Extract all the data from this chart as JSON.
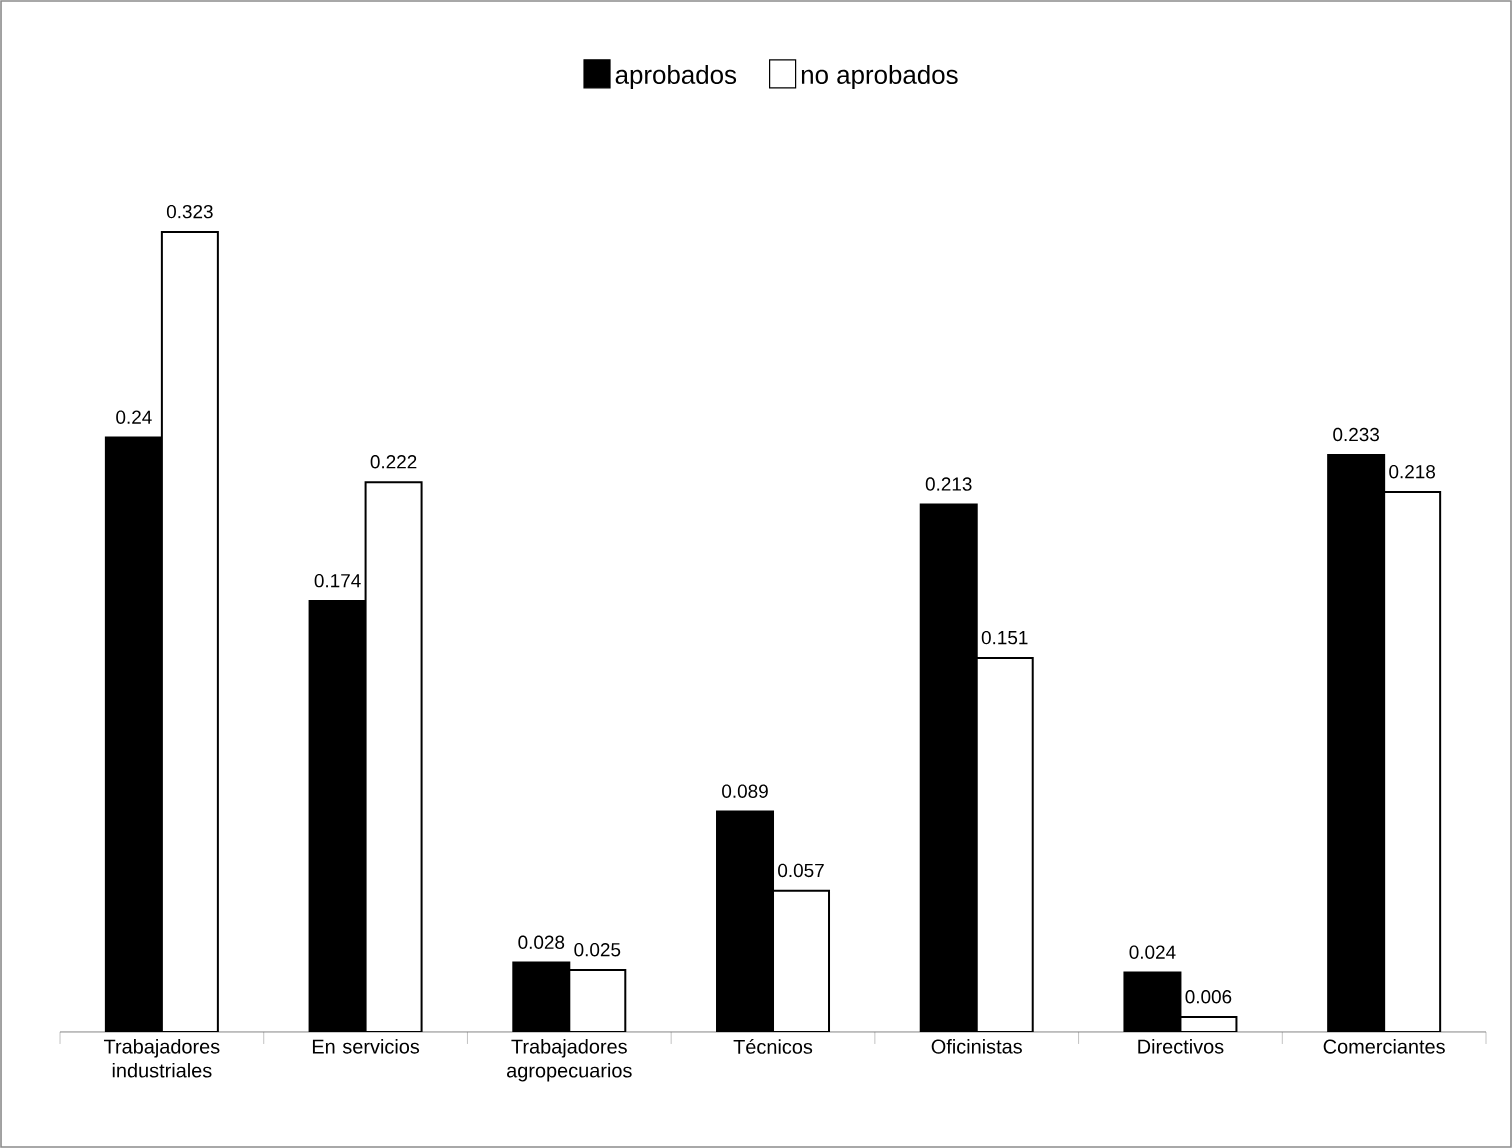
{
  "chart_data": {
    "type": "bar",
    "categories": [
      "Trabajadores industriales",
      "En servicios",
      "Trabajadores agropecuarios",
      "Técnicos",
      "Oficinistas",
      "Directivos",
      "Comerciantes"
    ],
    "series": [
      {
        "name": "aprobados",
        "color": "#000000",
        "values": [
          0.24,
          0.174,
          0.028,
          0.089,
          0.213,
          0.024,
          0.233
        ]
      },
      {
        "name": "no aprobados",
        "color": "#ffffff",
        "values": [
          0.323,
          0.222,
          0.025,
          0.057,
          0.151,
          0.006,
          0.218
        ]
      }
    ],
    "data_labels": true,
    "legend": "top"
  }
}
